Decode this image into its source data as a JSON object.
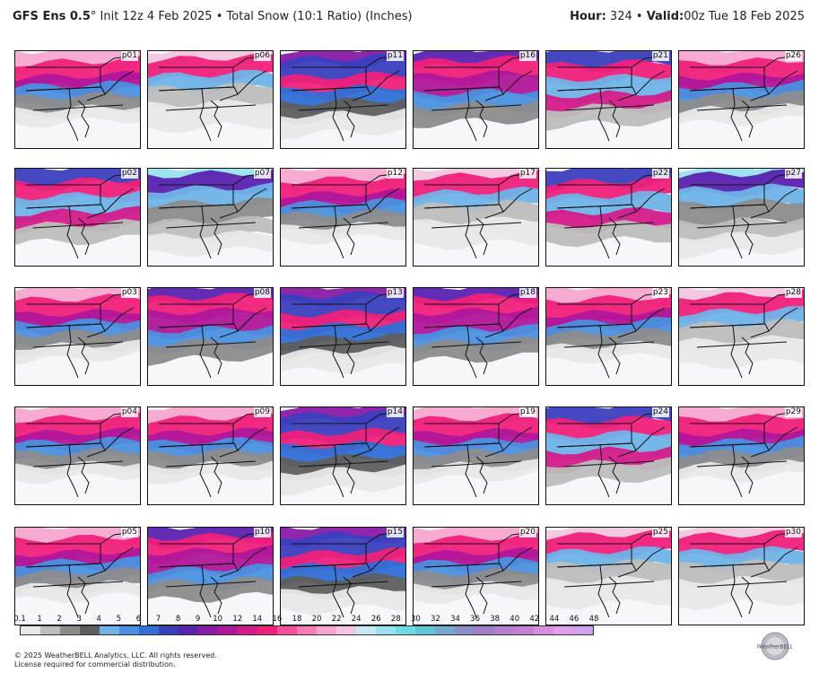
{
  "header": {
    "model": "GFS Ens 0.5",
    "degree": "°",
    "init": "Init 12z 4 Feb 2025",
    "separator": "•",
    "product": "Total Snow (10:1 Ratio) (Inches)",
    "hour_label": "Hour:",
    "hour_value": "324",
    "valid_label": "Valid:",
    "valid_value": "00z Tue 18 Feb 2025"
  },
  "panels": [
    {
      "label": "p01",
      "style": 0
    },
    {
      "label": "p06",
      "style": 1
    },
    {
      "label": "p11",
      "style": 2
    },
    {
      "label": "p16",
      "style": 3
    },
    {
      "label": "p21",
      "style": 4
    },
    {
      "label": "p26",
      "style": 0
    },
    {
      "label": "p02",
      "style": 4
    },
    {
      "label": "p07",
      "style": 5
    },
    {
      "label": "p12",
      "style": 0
    },
    {
      "label": "p17",
      "style": 1
    },
    {
      "label": "p22",
      "style": 4
    },
    {
      "label": "p27",
      "style": 5
    },
    {
      "label": "p03",
      "style": 0
    },
    {
      "label": "p08",
      "style": 3
    },
    {
      "label": "p13",
      "style": 2
    },
    {
      "label": "p18",
      "style": 3
    },
    {
      "label": "p23",
      "style": 0
    },
    {
      "label": "p28",
      "style": 1
    },
    {
      "label": "p04",
      "style": 0
    },
    {
      "label": "p09",
      "style": 0
    },
    {
      "label": "p14",
      "style": 2
    },
    {
      "label": "p19",
      "style": 0
    },
    {
      "label": "p24",
      "style": 4
    },
    {
      "label": "p29",
      "style": 0
    },
    {
      "label": "p05",
      "style": 0
    },
    {
      "label": "p10",
      "style": 3
    },
    {
      "label": "p15",
      "style": 2
    },
    {
      "label": "p20",
      "style": 0
    },
    {
      "label": "p25",
      "style": 1
    },
    {
      "label": "p30",
      "style": 1
    }
  ],
  "colorbar": {
    "ticks": [
      "0.1",
      "1",
      "2",
      "3",
      "4",
      "5",
      "6",
      "7",
      "8",
      "9",
      "10",
      "12",
      "14",
      "16",
      "18",
      "20",
      "22",
      "24",
      "26",
      "28",
      "30",
      "32",
      "34",
      "36",
      "38",
      "40",
      "42",
      "44",
      "46",
      "48"
    ],
    "colors": [
      "#e8e8e8",
      "#bdbdbd",
      "#8c8c8c",
      "#5e5e5e",
      "#6fb3e8",
      "#4a90e0",
      "#2f6fd6",
      "#3a3fbf",
      "#5a22b0",
      "#8a1aa8",
      "#b0169a",
      "#d41a8a",
      "#f0207a",
      "#f74e99",
      "#f77cb5",
      "#f7a6cd",
      "#f2c6de",
      "#c8e8f3",
      "#99e3ef",
      "#6fdbe6",
      "#5fc6d8",
      "#73a9cd",
      "#8d8ec9",
      "#a07ec9",
      "#b57fd0",
      "#c87fd8",
      "#d98de0",
      "#e3a0e8",
      "#d0a0f0"
    ]
  },
  "footer": {
    "line1": "© 2025 WeatherBELL Analytics, LLC. All rights reserved.",
    "line2": "License required for commercial distribution."
  },
  "logo": {
    "text": "WeatherBELL"
  }
}
